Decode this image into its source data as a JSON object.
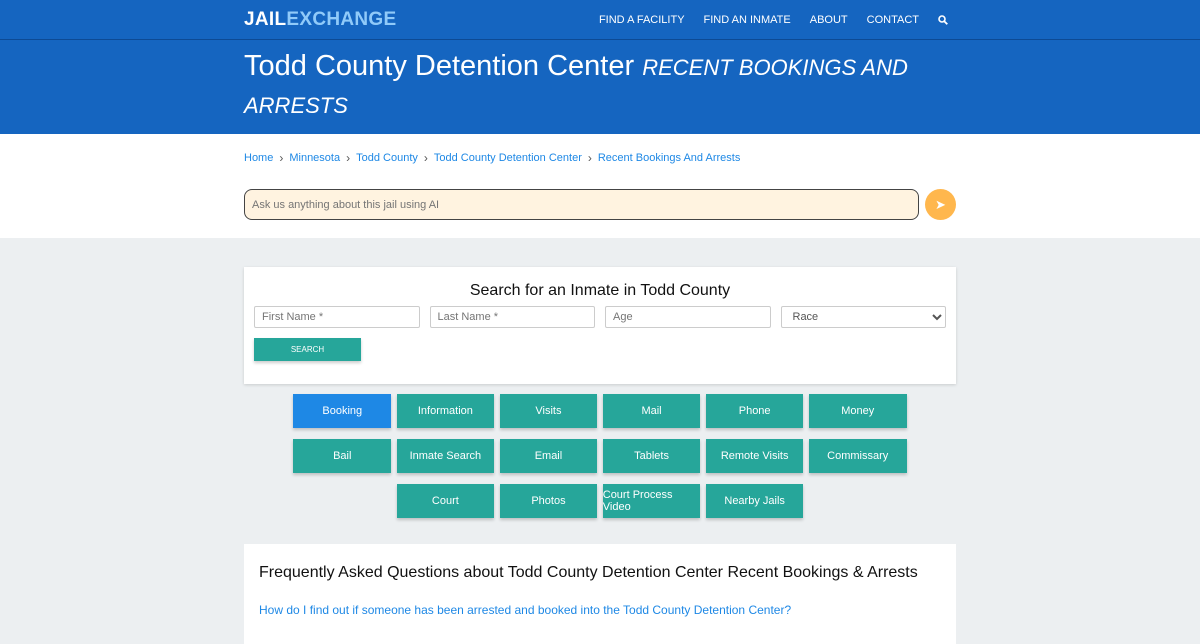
{
  "nav": {
    "logo_a": "JAIL",
    "logo_b": "EXCHANGE",
    "items": [
      "FIND A FACILITY",
      "FIND AN INMATE",
      "ABOUT",
      "CONTACT"
    ],
    "search_icon": "search-icon"
  },
  "hero": {
    "title": "Todd County Detention Center",
    "subtitle": "RECENT BOOKINGS AND ARRESTS"
  },
  "breadcrumb": [
    "Home",
    "Minnesota",
    "Todd County",
    "Todd County Detention Center",
    "Recent Bookings And Arrests"
  ],
  "ai": {
    "placeholder": "Ask us anything about this jail using AI",
    "send_icon": "paper-plane-icon"
  },
  "search": {
    "title": "Search for an Inmate in Todd County",
    "first": "First Name *",
    "last": "Last Name *",
    "age": "Age",
    "race": "Race",
    "button": "SEARCH"
  },
  "buttons": [
    "Booking",
    "Information",
    "Visits",
    "Mail",
    "Phone",
    "Money",
    "Bail",
    "Inmate Search",
    "Email",
    "Tablets",
    "Remote Visits",
    "Commissary",
    "Court",
    "Photos",
    "Court Process Video",
    "Nearby Jails"
  ],
  "colors": {
    "primary": "#1565c0",
    "teal": "#26a69a",
    "active": "#1e88e5"
  },
  "faq": {
    "title": "Frequently Asked Questions about Todd County Detention Center Recent Bookings & Arrests",
    "q1": "How do I find out if someone has been arrested and booked into the Todd County Detention Center?"
  }
}
